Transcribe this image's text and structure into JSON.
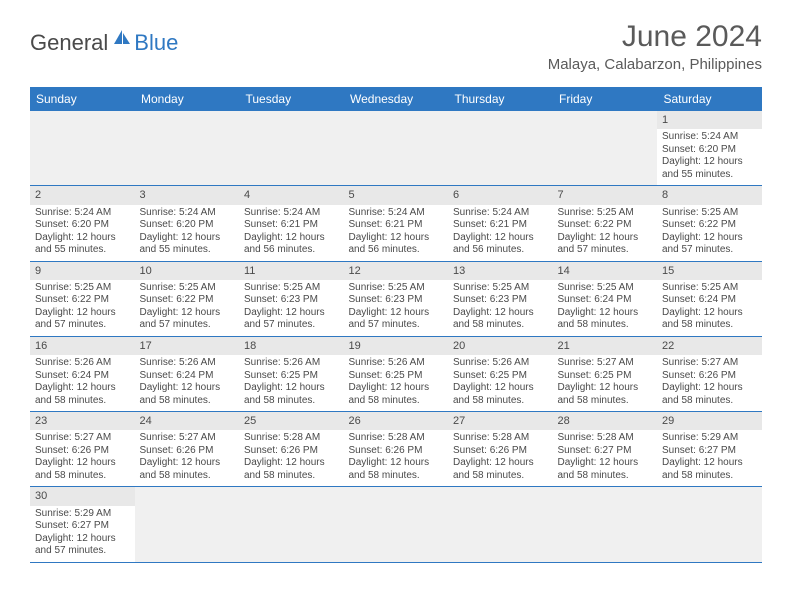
{
  "logo": {
    "text1": "General",
    "text2": "Blue"
  },
  "title": "June 2024",
  "location": "Malaya, Calabarzon, Philippines",
  "colors": {
    "header_bg": "#2f78c2",
    "header_text": "#ffffff",
    "daynum_bg": "#e8e8e8",
    "empty_bg": "#f0f0f0",
    "border": "#2f78c2",
    "text": "#4a4a4a"
  },
  "dayHeaders": [
    "Sunday",
    "Monday",
    "Tuesday",
    "Wednesday",
    "Thursday",
    "Friday",
    "Saturday"
  ],
  "weeks": [
    [
      null,
      null,
      null,
      null,
      null,
      null,
      {
        "n": "1",
        "sr": "5:24 AM",
        "ss": "6:20 PM",
        "dl": "12 hours and 55 minutes."
      }
    ],
    [
      {
        "n": "2",
        "sr": "5:24 AM",
        "ss": "6:20 PM",
        "dl": "12 hours and 55 minutes."
      },
      {
        "n": "3",
        "sr": "5:24 AM",
        "ss": "6:20 PM",
        "dl": "12 hours and 55 minutes."
      },
      {
        "n": "4",
        "sr": "5:24 AM",
        "ss": "6:21 PM",
        "dl": "12 hours and 56 minutes."
      },
      {
        "n": "5",
        "sr": "5:24 AM",
        "ss": "6:21 PM",
        "dl": "12 hours and 56 minutes."
      },
      {
        "n": "6",
        "sr": "5:24 AM",
        "ss": "6:21 PM",
        "dl": "12 hours and 56 minutes."
      },
      {
        "n": "7",
        "sr": "5:25 AM",
        "ss": "6:22 PM",
        "dl": "12 hours and 57 minutes."
      },
      {
        "n": "8",
        "sr": "5:25 AM",
        "ss": "6:22 PM",
        "dl": "12 hours and 57 minutes."
      }
    ],
    [
      {
        "n": "9",
        "sr": "5:25 AM",
        "ss": "6:22 PM",
        "dl": "12 hours and 57 minutes."
      },
      {
        "n": "10",
        "sr": "5:25 AM",
        "ss": "6:22 PM",
        "dl": "12 hours and 57 minutes."
      },
      {
        "n": "11",
        "sr": "5:25 AM",
        "ss": "6:23 PM",
        "dl": "12 hours and 57 minutes."
      },
      {
        "n": "12",
        "sr": "5:25 AM",
        "ss": "6:23 PM",
        "dl": "12 hours and 57 minutes."
      },
      {
        "n": "13",
        "sr": "5:25 AM",
        "ss": "6:23 PM",
        "dl": "12 hours and 58 minutes."
      },
      {
        "n": "14",
        "sr": "5:25 AM",
        "ss": "6:24 PM",
        "dl": "12 hours and 58 minutes."
      },
      {
        "n": "15",
        "sr": "5:25 AM",
        "ss": "6:24 PM",
        "dl": "12 hours and 58 minutes."
      }
    ],
    [
      {
        "n": "16",
        "sr": "5:26 AM",
        "ss": "6:24 PM",
        "dl": "12 hours and 58 minutes."
      },
      {
        "n": "17",
        "sr": "5:26 AM",
        "ss": "6:24 PM",
        "dl": "12 hours and 58 minutes."
      },
      {
        "n": "18",
        "sr": "5:26 AM",
        "ss": "6:25 PM",
        "dl": "12 hours and 58 minutes."
      },
      {
        "n": "19",
        "sr": "5:26 AM",
        "ss": "6:25 PM",
        "dl": "12 hours and 58 minutes."
      },
      {
        "n": "20",
        "sr": "5:26 AM",
        "ss": "6:25 PM",
        "dl": "12 hours and 58 minutes."
      },
      {
        "n": "21",
        "sr": "5:27 AM",
        "ss": "6:25 PM",
        "dl": "12 hours and 58 minutes."
      },
      {
        "n": "22",
        "sr": "5:27 AM",
        "ss": "6:26 PM",
        "dl": "12 hours and 58 minutes."
      }
    ],
    [
      {
        "n": "23",
        "sr": "5:27 AM",
        "ss": "6:26 PM",
        "dl": "12 hours and 58 minutes."
      },
      {
        "n": "24",
        "sr": "5:27 AM",
        "ss": "6:26 PM",
        "dl": "12 hours and 58 minutes."
      },
      {
        "n": "25",
        "sr": "5:28 AM",
        "ss": "6:26 PM",
        "dl": "12 hours and 58 minutes."
      },
      {
        "n": "26",
        "sr": "5:28 AM",
        "ss": "6:26 PM",
        "dl": "12 hours and 58 minutes."
      },
      {
        "n": "27",
        "sr": "5:28 AM",
        "ss": "6:26 PM",
        "dl": "12 hours and 58 minutes."
      },
      {
        "n": "28",
        "sr": "5:28 AM",
        "ss": "6:27 PM",
        "dl": "12 hours and 58 minutes."
      },
      {
        "n": "29",
        "sr": "5:29 AM",
        "ss": "6:27 PM",
        "dl": "12 hours and 58 minutes."
      }
    ],
    [
      {
        "n": "30",
        "sr": "5:29 AM",
        "ss": "6:27 PM",
        "dl": "12 hours and 57 minutes."
      },
      null,
      null,
      null,
      null,
      null,
      null
    ]
  ],
  "labels": {
    "sunrise": "Sunrise:",
    "sunset": "Sunset:",
    "daylight": "Daylight:"
  }
}
